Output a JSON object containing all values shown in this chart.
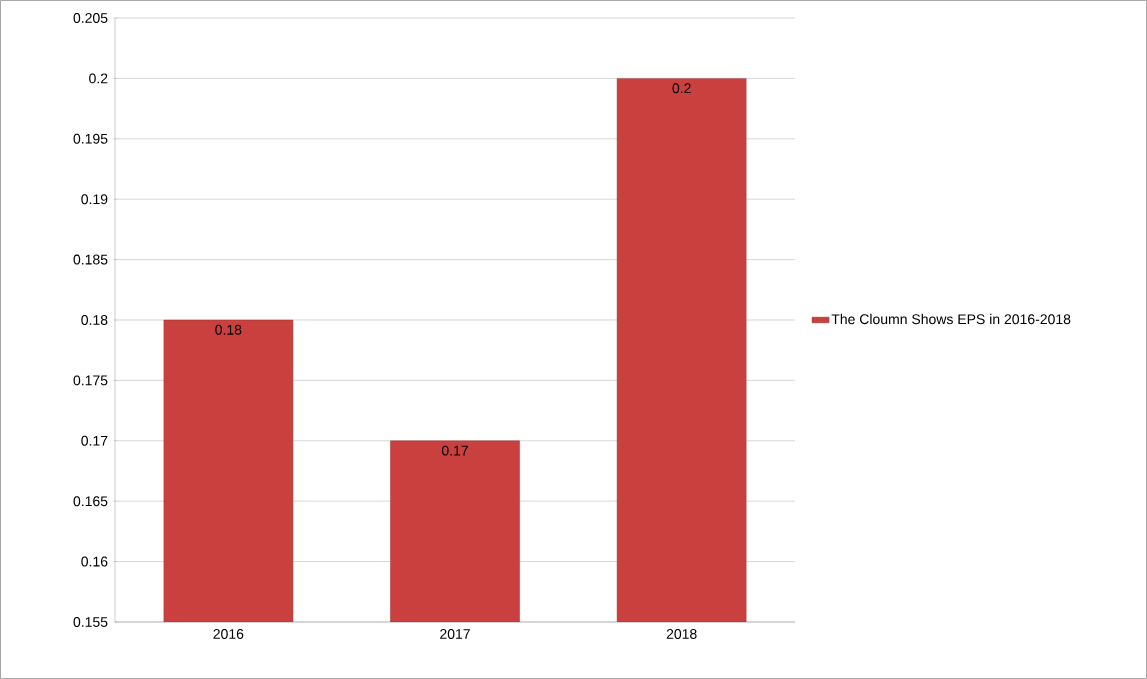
{
  "chart_data": {
    "type": "bar",
    "categories": [
      "2016",
      "2017",
      "2018"
    ],
    "series": [
      {
        "name": "The Cloumn Shows EPS in 2016-2018",
        "color": "#c9403f",
        "values": [
          0.18,
          0.17,
          0.2
        ]
      }
    ],
    "ylim": [
      0.155,
      0.205
    ],
    "yticks": [
      0.155,
      0.16,
      0.165,
      0.17,
      0.175,
      0.18,
      0.185,
      0.19,
      0.195,
      0.2,
      0.205
    ],
    "grid": "y",
    "legend": "right",
    "data_labels": true
  }
}
